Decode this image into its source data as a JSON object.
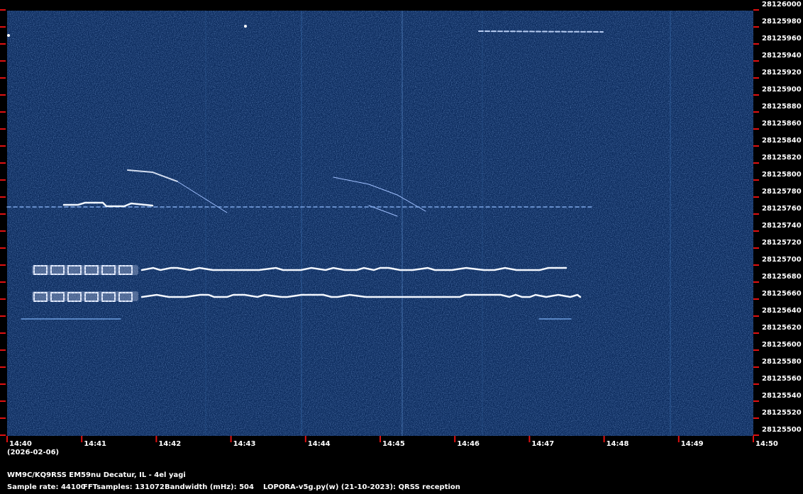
{
  "chart_data": {
    "type": "waterfall",
    "x": [
      "14:40",
      "14:41",
      "14:42",
      "14:43",
      "14:44",
      "14:45",
      "14:46",
      "14:47",
      "14:48",
      "14:49",
      "14:50"
    ],
    "date": "(2026-02-06)",
    "ylim": [
      28125500,
      28126000
    ],
    "yticks": [
      28125500,
      28125520,
      28125540,
      28125560,
      28125580,
      28125600,
      28125620,
      28125640,
      28125660,
      28125680,
      28125700,
      28125720,
      28125740,
      28125760,
      28125780,
      28125800,
      28125820,
      28125840,
      28125860,
      28125880,
      28125900,
      28125920,
      28125940,
      28125960,
      28125980,
      28126000
    ],
    "tick_color": "#e01010"
  },
  "footer": {
    "station": "WM9C/KQ9RSS EM59nu Decatur, IL - 4el yagi",
    "sample_rate": "Sample rate: 44100",
    "fft_samples": "FFTsamples: 131072",
    "bandwidth": "Bandwidth (mHz): 504",
    "software": "LOPORA-v5g.py(w) (21-10-2023): QRSS reception"
  }
}
